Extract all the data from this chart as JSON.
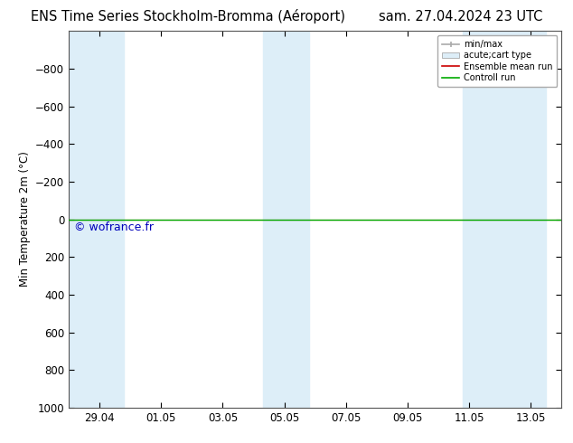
{
  "title_left": "ENS Time Series Stockholm-Bromma (Aéroport)",
  "title_right": "sam. 27.04.2024 23 UTC",
  "ylabel": "Min Temperature 2m (°C)",
  "bg_color": "#ffffff",
  "plot_bg_color": "#ffffff",
  "ylim_bottom": 1000,
  "ylim_top": -1000,
  "yticks": [
    -800,
    -600,
    -400,
    -200,
    0,
    200,
    400,
    600,
    800,
    1000
  ],
  "xtick_labels": [
    "29.04",
    "01.05",
    "03.05",
    "05.05",
    "07.05",
    "09.05",
    "11.05",
    "13.05"
  ],
  "xtick_positions": [
    1,
    3,
    5,
    7,
    9,
    11,
    13,
    15
  ],
  "xlim": [
    0,
    16
  ],
  "band_pairs": [
    [
      0.0,
      1.8
    ],
    [
      6.3,
      7.0
    ],
    [
      7.0,
      7.8
    ],
    [
      12.8,
      13.5
    ],
    [
      13.5,
      15.5
    ]
  ],
  "green_line_y": 0,
  "red_line_y": 0,
  "watermark": "© wofrance.fr",
  "watermark_color": "#0000bb",
  "legend_entries": [
    "min/max",
    "acute;cart type",
    "Ensemble mean run",
    "Controll run"
  ],
  "band_color": "#ddeef8",
  "band_alpha": 1.0,
  "title_fontsize": 10.5,
  "axis_label_fontsize": 8.5,
  "tick_fontsize": 8.5,
  "watermark_fontsize": 9
}
